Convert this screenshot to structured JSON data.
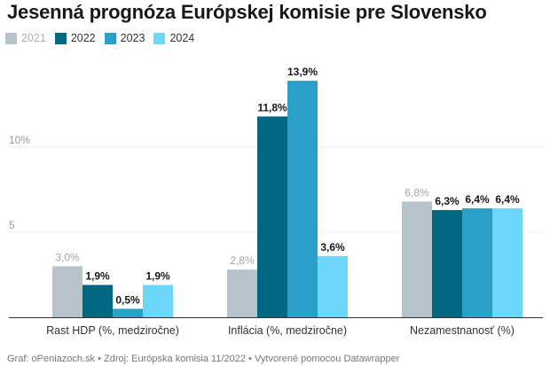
{
  "title": "Jesenná prognóza Európskej komisie pre Slovensko",
  "footer": "Graf: oPeniazoch.sk • Zdroj: Európska komisia 11/2022 • Vytvorené pomocou Datawrapper",
  "chart_data": {
    "type": "bar",
    "title": "Jesenná prognóza Európskej komisie pre Slovensko",
    "categories": [
      "Rast HDP (%, medziročne)",
      "Inflácia (%, medziročne)",
      "Nezamestnanosť (%)"
    ],
    "series": [
      {
        "name": "2021",
        "values": [
          3.0,
          2.8,
          6.8
        ],
        "labels": [
          "3,0%",
          "2,8%",
          "6,8%"
        ],
        "color": "#b7c3cb",
        "emphasis": false
      },
      {
        "name": "2022",
        "values": [
          1.9,
          11.8,
          6.3
        ],
        "labels": [
          "1,9%",
          "11,8%",
          "6,3%"
        ],
        "color": "#006682",
        "emphasis": true
      },
      {
        "name": "2023",
        "values": [
          0.5,
          13.9,
          6.4
        ],
        "labels": [
          "0,5%",
          "13,9%",
          "6,4%"
        ],
        "color": "#2b9fc7",
        "emphasis": true
      },
      {
        "name": "2024",
        "values": [
          1.9,
          3.6,
          6.4
        ],
        "labels": [
          "1,9%",
          "3,6%",
          "6,4%"
        ],
        "color": "#6dd7fb",
        "emphasis": true
      }
    ],
    "yticks": [
      {
        "value": 5,
        "label": "5"
      },
      {
        "value": 10,
        "label": "10%"
      }
    ],
    "ylim": [
      0,
      15
    ],
    "grid": true,
    "legend": "top-left"
  }
}
